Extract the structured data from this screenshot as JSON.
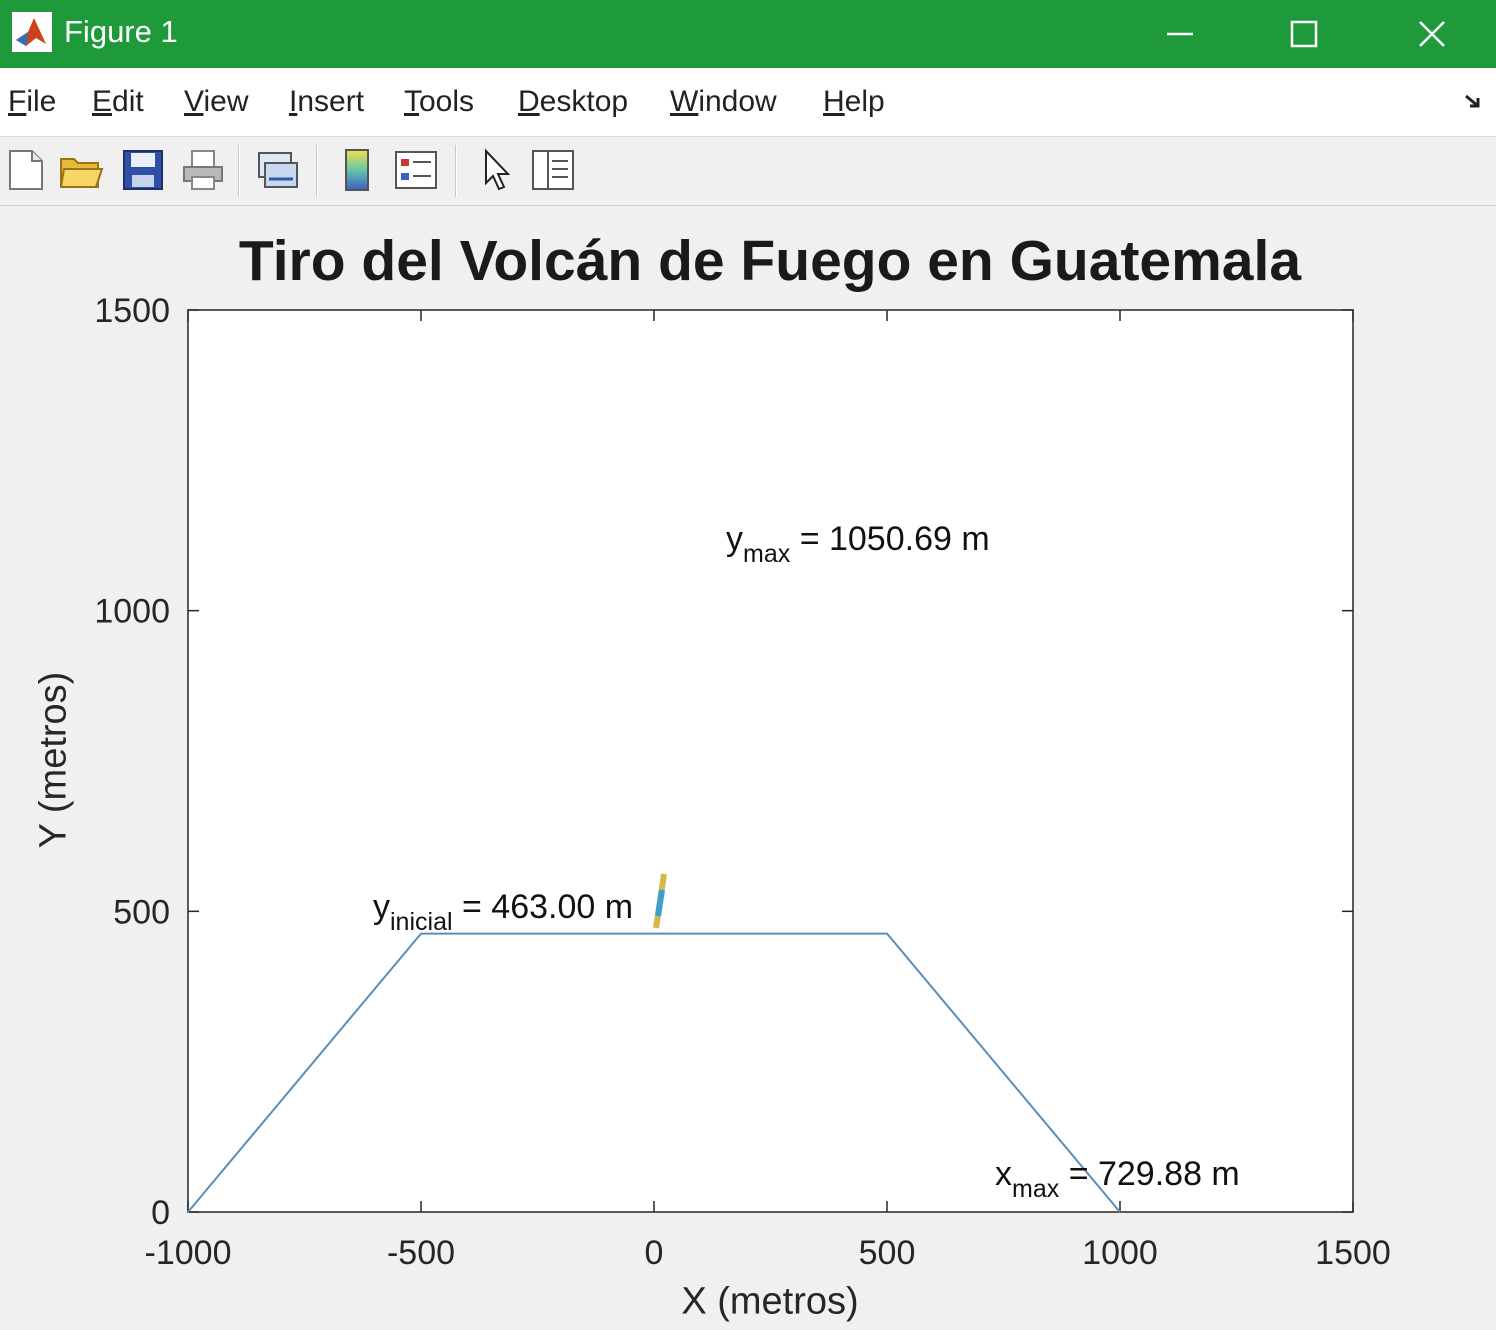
{
  "window": {
    "title": "Figure 1",
    "controls": [
      "minimize-icon",
      "maximize-icon",
      "close-icon"
    ],
    "accent": "#1e9a3b"
  },
  "menu": [
    {
      "label": "File",
      "ul": "F",
      "rest": "ile"
    },
    {
      "label": "Edit",
      "ul": "E",
      "rest": "dit"
    },
    {
      "label": "View",
      "ul": "V",
      "rest": "iew"
    },
    {
      "label": "Insert",
      "ul": "I",
      "rest": "nsert"
    },
    {
      "label": "Tools",
      "ul": "T",
      "rest": "ools"
    },
    {
      "label": "Desktop",
      "ul": "D",
      "rest": "esktop"
    },
    {
      "label": "Window",
      "ul": "W",
      "rest": "indow"
    },
    {
      "label": "Help",
      "ul": "H",
      "rest": "elp"
    }
  ],
  "toolbar": [
    "new-figure-icon",
    "open-file-icon",
    "save-icon",
    "print-icon",
    "link-plot-icon",
    "insert-colorbar-icon",
    "insert-legend-icon",
    "edit-plot-icon",
    "property-inspector-icon"
  ],
  "chart_data": {
    "type": "line",
    "title": "Tiro del Volcán de Fuego en Guatemala",
    "xlabel": "X (metros)",
    "ylabel": "Y (metros)",
    "xlim": [
      -1000,
      1500
    ],
    "ylim": [
      0,
      1500
    ],
    "xticks": [
      -1000,
      -500,
      0,
      500,
      1000,
      1500
    ],
    "yticks": [
      0,
      500,
      1000,
      1500
    ],
    "grid": false,
    "series": [
      {
        "color": "#5a8db8",
        "x": [
          -1000,
          -500,
          500,
          1000
        ],
        "y": [
          0,
          463,
          463,
          0
        ]
      }
    ],
    "annotations": {
      "ymax": {
        "base": "y",
        "sub": "max",
        "text": "= 1050.69 m"
      },
      "yinicial": {
        "base": "y",
        "sub": "inicial",
        "text": "= 463.00 m"
      },
      "xmax": {
        "base": "x",
        "sub": "max",
        "text": "= 729.88 m"
      }
    }
  }
}
